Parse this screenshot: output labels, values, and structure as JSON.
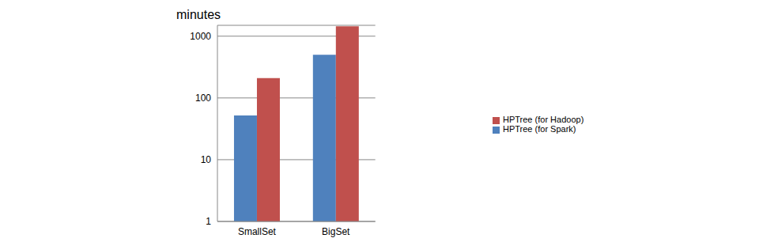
{
  "chart_data": {
    "type": "bar",
    "title": "minutes",
    "categories": [
      "SmallSet",
      "BigSet"
    ],
    "series": [
      {
        "name": "HPTree (for Spark)",
        "color": "#4f81bd",
        "values": [
          52,
          500
        ]
      },
      {
        "name": "HPTree (for Hadoop)",
        "color": "#c0504d",
        "values": [
          210,
          1450
        ]
      }
    ],
    "log": "y",
    "ylim": [
      1,
      1500
    ],
    "yticks": [
      1,
      10,
      100,
      1000
    ],
    "grid": true,
    "legend": "right"
  }
}
